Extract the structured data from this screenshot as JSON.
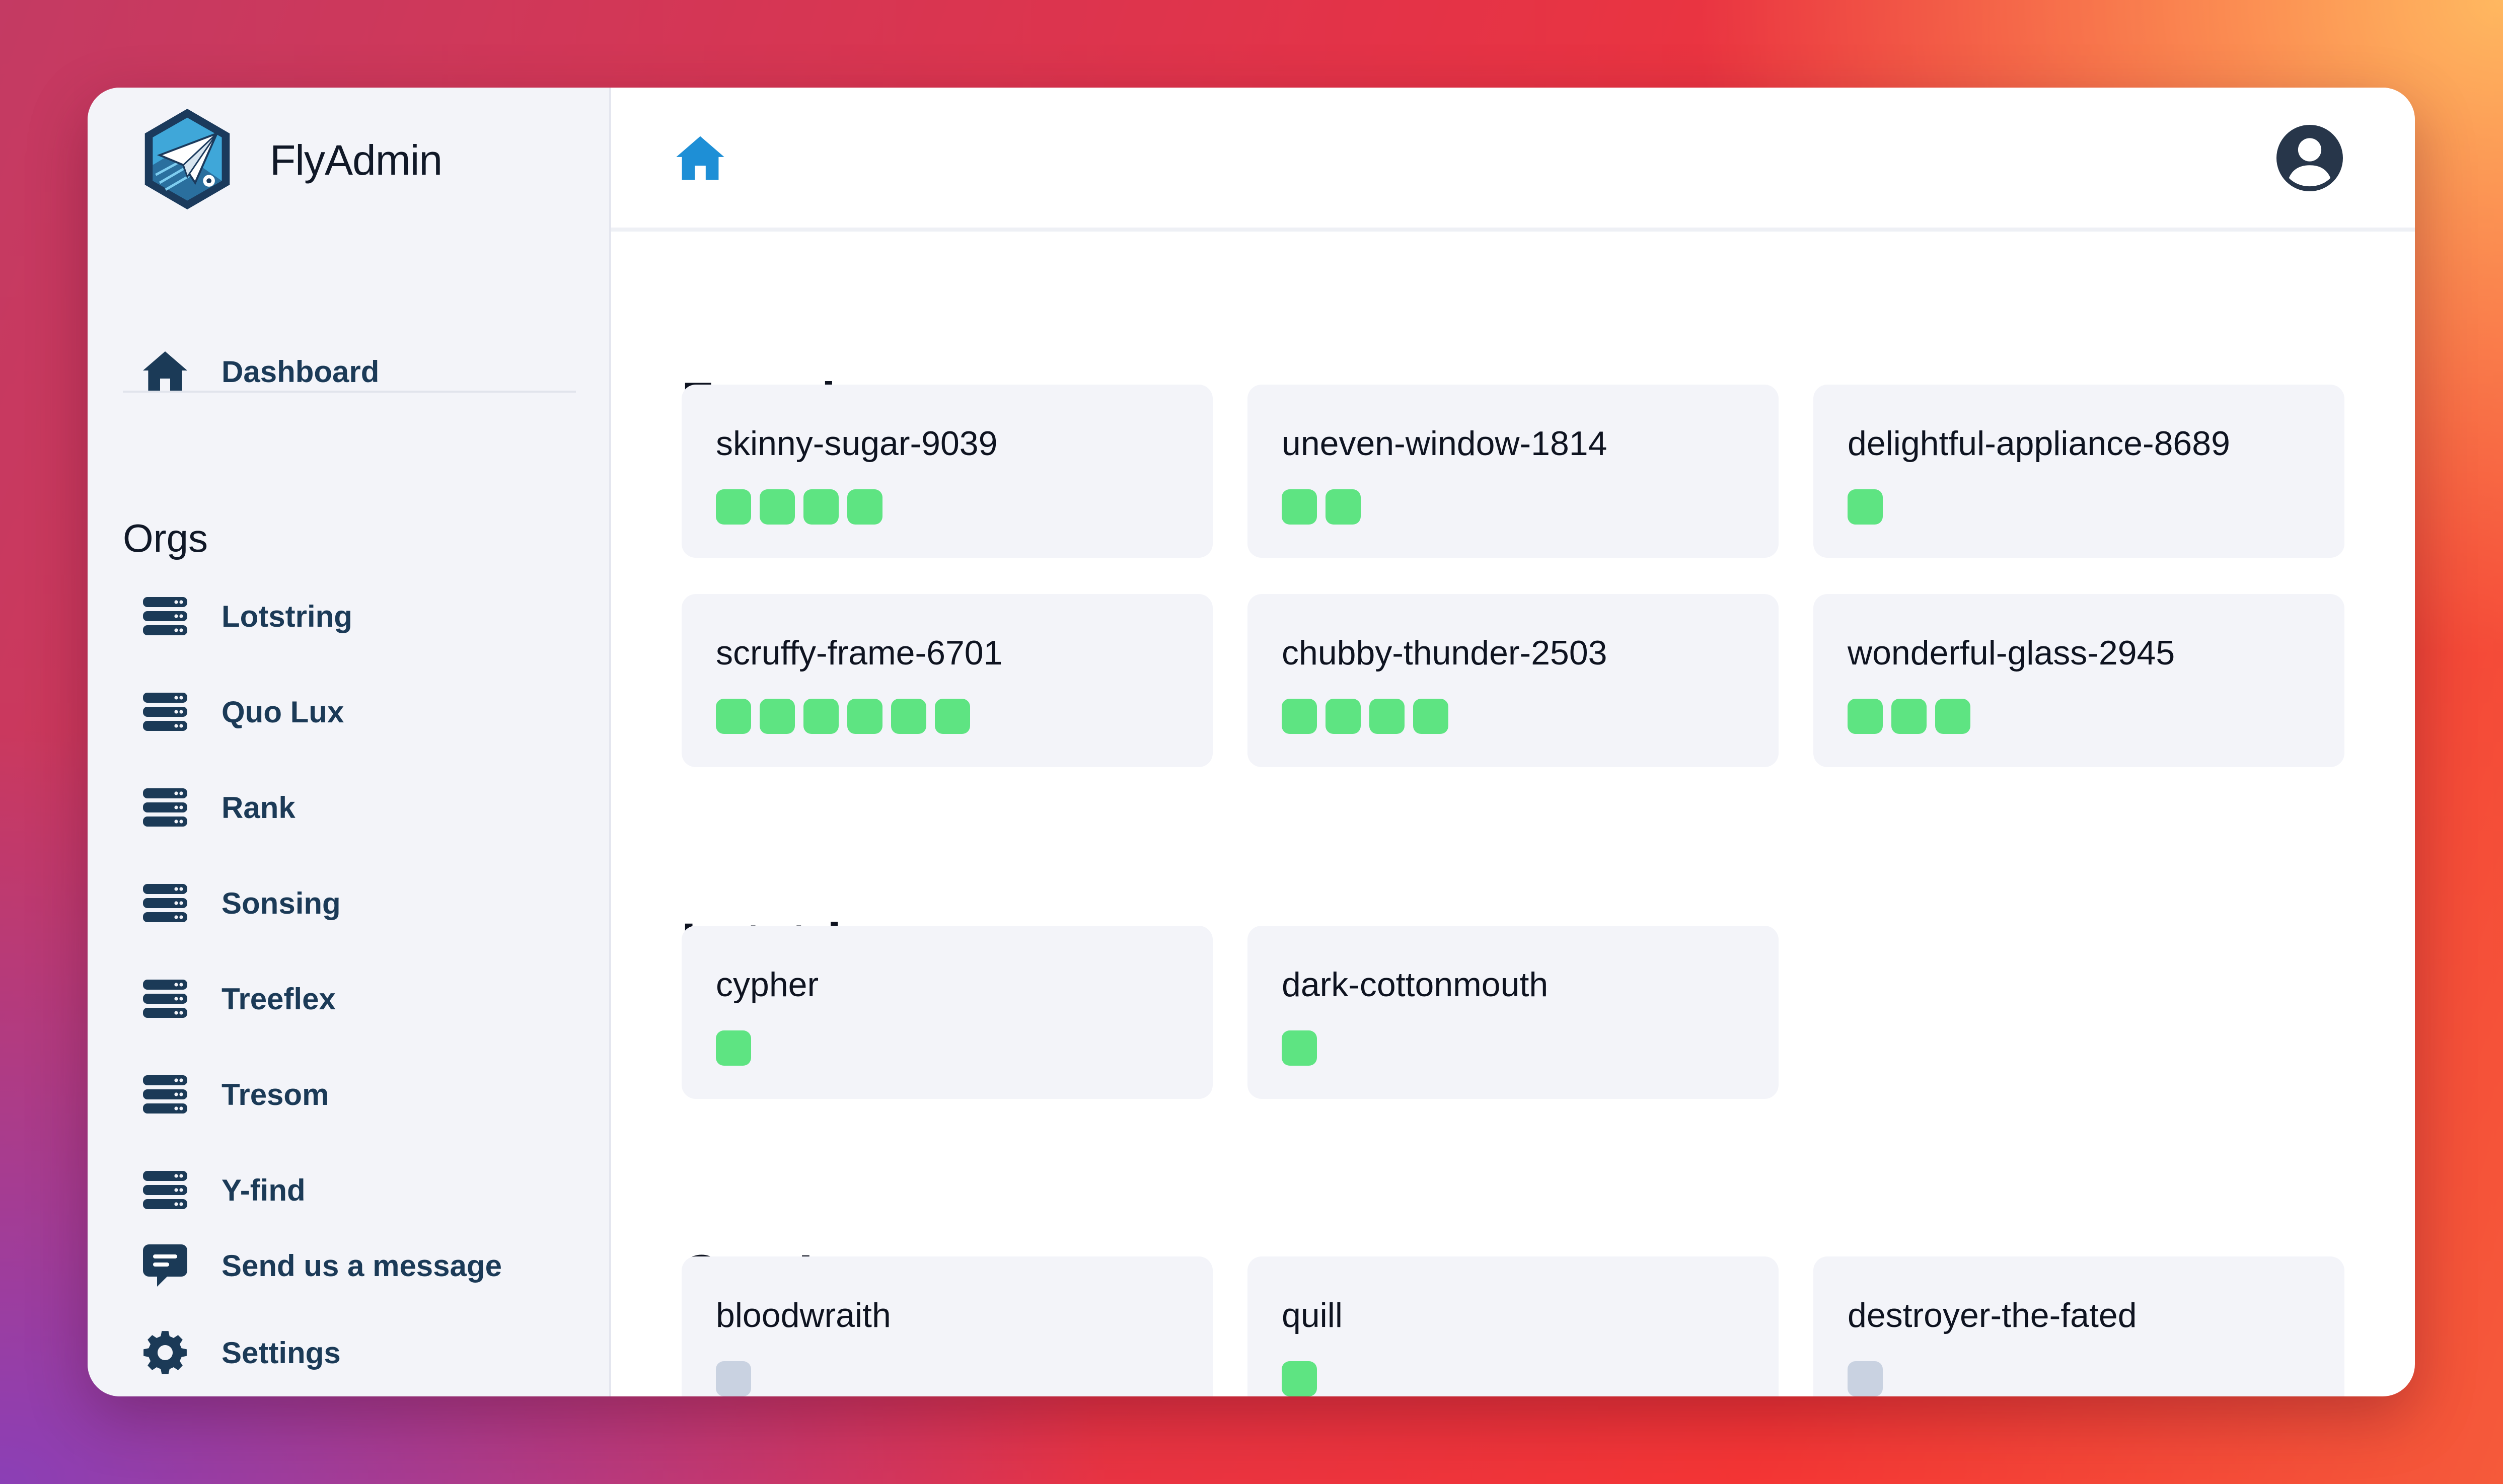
{
  "app": {
    "title": "FlyAdmin"
  },
  "sidebar": {
    "dashboard_label": "Dashboard",
    "orgs_title": "Orgs",
    "orgs": [
      "Lotstring",
      "Quo Lux",
      "Rank",
      "Sonsing",
      "Treeflex",
      "Tresom",
      "Y-find"
    ],
    "message_label": "Send us a message",
    "settings_label": "Settings"
  },
  "colors": {
    "accent": "#1e8fd6",
    "nav_text": "#1b3a57",
    "status_green": "#5ee482",
    "status_gray": "#c9d2e1"
  },
  "sections": [
    {
      "title": "Favorites",
      "cards": [
        {
          "name": "skinny-sugar-9039",
          "dots": [
            "green",
            "green",
            "green",
            "green"
          ]
        },
        {
          "name": "uneven-window-1814",
          "dots": [
            "green",
            "green"
          ]
        },
        {
          "name": "delightful-appliance-8689",
          "dots": [
            "green"
          ]
        },
        {
          "name": "scruffy-frame-6701",
          "dots": [
            "green",
            "green",
            "green",
            "green",
            "green",
            "green"
          ]
        },
        {
          "name": "chubby-thunder-2503",
          "dots": [
            "green",
            "green",
            "green",
            "green"
          ]
        },
        {
          "name": "wonderful-glass-2945",
          "dots": [
            "green",
            "green",
            "green"
          ]
        }
      ]
    },
    {
      "title": "Lotstring",
      "cards": [
        {
          "name": "cypher",
          "dots": [
            "green"
          ]
        },
        {
          "name": "dark-cottonmouth",
          "dots": [
            "green"
          ]
        }
      ]
    },
    {
      "title": "Quo Lux",
      "cards": [
        {
          "name": "bloodwraith",
          "dots": [
            "gray"
          ]
        },
        {
          "name": "quill",
          "dots": [
            "green"
          ]
        },
        {
          "name": "destroyer-the-fated",
          "dots": [
            "gray"
          ]
        }
      ]
    }
  ]
}
